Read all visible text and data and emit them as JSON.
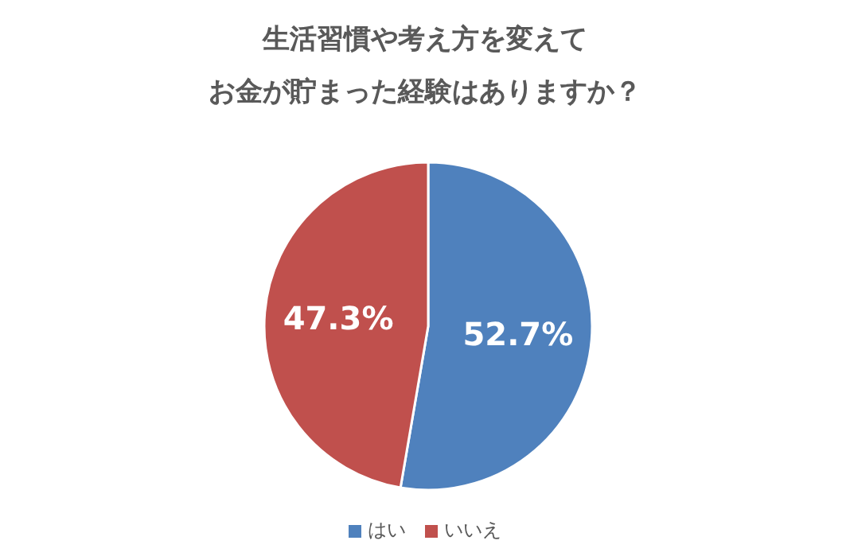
{
  "chart_data": {
    "type": "pie",
    "title": "生活習慣や考え方を変えて",
    "subtitle": "お金が貯まった経験はありますか？",
    "categories": [
      "はい",
      "いいえ"
    ],
    "values": [
      52.7,
      47.3
    ],
    "colors": [
      "#4f81bd",
      "#c0504d"
    ],
    "value_labels": [
      "52.7%",
      "47.3%"
    ],
    "legend": "bottom"
  }
}
